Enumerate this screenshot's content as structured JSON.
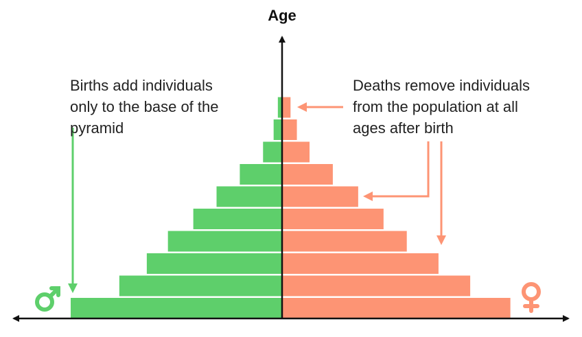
{
  "axis_label": "Age",
  "colors": {
    "male": "#5ecf6b",
    "female": "#fd9474",
    "axis": "#111111",
    "text": "#222222"
  },
  "annotations": {
    "births": [
      "Births add individuals",
      "only to the base of the",
      "pyramid"
    ],
    "deaths": [
      "Deaths remove individuals",
      "from the population at all",
      "ages after birth"
    ]
  },
  "symbols": {
    "male": "mars-symbol-icon",
    "female": "venus-symbol-icon"
  },
  "chart_data": {
    "type": "bar",
    "orientation": "horizontal-pyramid",
    "age_classes_bottom_to_top": 10,
    "series": [
      {
        "values": [
          100,
          77,
          64,
          54,
          42,
          31,
          20,
          9,
          4,
          2
        ]
      },
      {
        "values": [
          108,
          89,
          74,
          59,
          48,
          36,
          24,
          13,
          7,
          4
        ]
      }
    ]
  }
}
